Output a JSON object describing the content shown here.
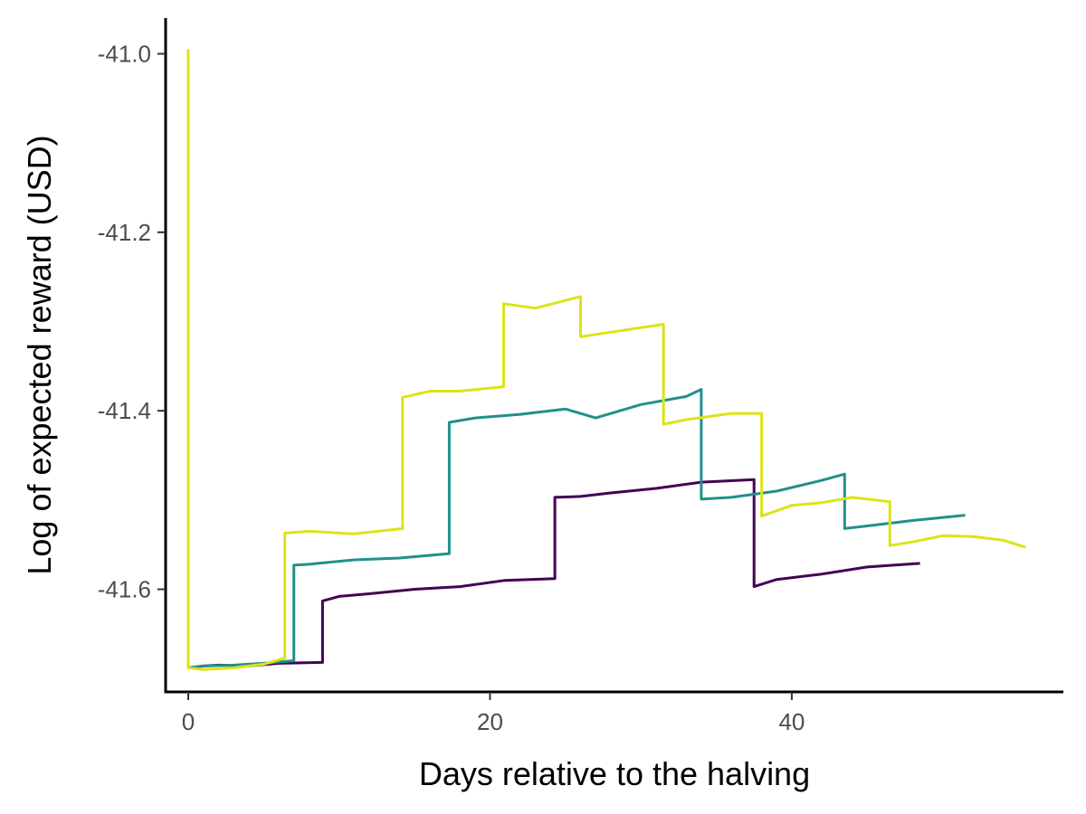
{
  "chart_data": {
    "type": "line",
    "title": "",
    "xlabel": "Days relative to the halving",
    "ylabel": "Log of expected reward (USD)",
    "xlim": [
      -1.5,
      58
    ],
    "ylim": [
      -41.715,
      -40.96
    ],
    "x_ticks": [
      0,
      20,
      40
    ],
    "x_tick_labels": [
      "0",
      "20",
      "40"
    ],
    "y_ticks": [
      -41.6,
      -41.4,
      -41.2,
      -41.0
    ],
    "y_tick_labels": [
      "-41.6",
      "-41.4",
      "-41.2",
      "-41.0"
    ],
    "grid": false,
    "legend": "none",
    "series": [
      {
        "color": "#440154",
        "x": [
          0.0,
          1.0,
          2.0,
          4.0,
          6.0,
          8.9,
          8.9,
          10.0,
          12.0,
          15.0,
          18.0,
          21.0,
          24.3,
          24.3,
          26.0,
          28.0,
          31.0,
          34.0,
          37.5,
          37.5,
          39.0,
          42.0,
          45.0,
          48.5
        ],
        "y": [
          -41.688,
          -41.686,
          -41.685,
          -41.686,
          -41.683,
          -41.682,
          -41.613,
          -41.608,
          -41.605,
          -41.6,
          -41.597,
          -41.59,
          -41.588,
          -41.497,
          -41.496,
          -41.492,
          -41.487,
          -41.48,
          -41.477,
          -41.597,
          -41.589,
          -41.583,
          -41.575,
          -41.571
        ]
      },
      {
        "color": "#21908C",
        "x": [
          0.0,
          1.0,
          3.0,
          5.0,
          7.0,
          7.0,
          8.0,
          11.0,
          14.0,
          17.3,
          17.3,
          19.0,
          22.0,
          25.0,
          27.0,
          30.0,
          33.0,
          34.0,
          34.0,
          36.0,
          39.0,
          42.0,
          43.5,
          43.5,
          45.0,
          48.0,
          51.5
        ],
        "y": [
          -41.688,
          -41.686,
          -41.685,
          -41.683,
          -41.68,
          -41.573,
          -41.572,
          -41.567,
          -41.565,
          -41.56,
          -41.413,
          -41.408,
          -41.404,
          -41.398,
          -41.408,
          -41.393,
          -41.384,
          -41.376,
          -41.499,
          -41.497,
          -41.49,
          -41.478,
          -41.471,
          -41.532,
          -41.529,
          -41.523,
          -41.517
        ]
      },
      {
        "color": "#DDE318",
        "x": [
          0.0,
          0.0,
          1.0,
          3.0,
          5.0,
          6.4,
          6.4,
          8.0,
          11.0,
          14.2,
          14.2,
          16.0,
          18.0,
          20.9,
          20.9,
          23.0,
          26.0,
          26.0,
          28.0,
          31.5,
          31.5,
          33.0,
          36.0,
          38.0,
          38.0,
          40.0,
          42.0,
          44.0,
          46.5,
          46.5,
          48.0,
          50.0,
          52.0,
          54.0,
          55.5
        ],
        "y": [
          -40.995,
          -41.688,
          -41.69,
          -41.688,
          -41.684,
          -41.677,
          -41.537,
          -41.535,
          -41.538,
          -41.532,
          -41.385,
          -41.378,
          -41.378,
          -41.373,
          -41.28,
          -41.285,
          -41.272,
          -41.317,
          -41.312,
          -41.303,
          -41.415,
          -41.41,
          -41.403,
          -41.403,
          -41.518,
          -41.506,
          -41.503,
          -41.497,
          -41.502,
          -41.551,
          -41.547,
          -41.54,
          -41.541,
          -41.545,
          -41.553
        ]
      }
    ]
  }
}
